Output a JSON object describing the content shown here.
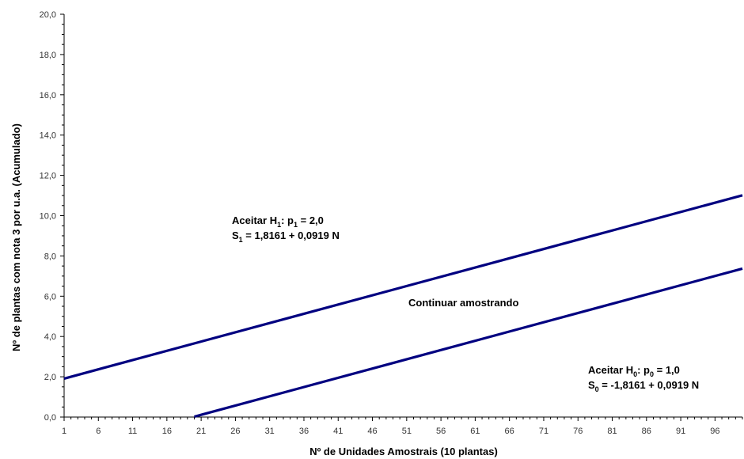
{
  "chart_data": {
    "type": "line",
    "xlabel": "Nº de Unidades Amostrais (10 plantas)",
    "ylabel": "Nº de plantas com nota 3 por u.a. (Acumulado)",
    "xlim": [
      1,
      100
    ],
    "ylim": [
      0,
      20
    ],
    "x_tick_labels": [
      "1",
      "6",
      "11",
      "16",
      "21",
      "26",
      "31",
      "36",
      "41",
      "46",
      "51",
      "56",
      "61",
      "66",
      "71",
      "76",
      "81",
      "86",
      "91",
      "96"
    ],
    "y_tick_labels": [
      "0,0",
      "2,0",
      "4,0",
      "6,0",
      "8,0",
      "10,0",
      "12,0",
      "14,0",
      "16,0",
      "18,0",
      "20,0"
    ],
    "series": [
      {
        "intercept": 1.8161,
        "slope": 0.0919,
        "x": [
          1,
          100
        ],
        "values": [
          1.91,
          11.01
        ],
        "color": "#000080"
      },
      {
        "intercept": -1.8161,
        "slope": 0.0919,
        "x": [
          20,
          100
        ],
        "values": [
          0.02,
          7.37
        ],
        "color": "#000080"
      }
    ],
    "annotations": {
      "h1": {
        "prefix": "Aceitar H",
        "sub_a": "1",
        "mid": ": p",
        "sub_b": "1",
        "suffix": " = 2,0"
      },
      "s1": {
        "prefix": "S",
        "sub": "1",
        "suffix": " = 1,8161 + 0,0919 N"
      },
      "continuar": "Continuar amostrando",
      "h0": {
        "prefix": "Aceitar H",
        "sub_a": "0",
        "mid": ": p",
        "sub_b": "0",
        "suffix": " = 1,0"
      },
      "s0": {
        "prefix": "S",
        "sub": "0",
        "suffix": " = -1,8161 + 0,0919 N"
      }
    }
  }
}
